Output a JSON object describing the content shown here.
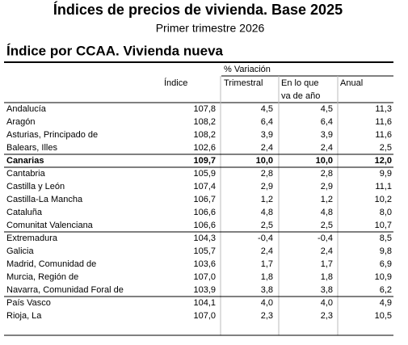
{
  "header": {
    "title": "Índices de precios de vivienda. Base 2025",
    "subtitle": "Primer trimestre 2026"
  },
  "table": {
    "title": "Índice por CCAA. Vivienda nueva",
    "group_header": "% Variación",
    "columns": [
      "Índice",
      "Trimestral",
      "En lo que",
      "va de año",
      "Anual"
    ],
    "rows": [
      [
        "Andalucía",
        "107,8",
        "4,5",
        "4,5",
        "11,3"
      ],
      [
        "Aragón",
        "108,2",
        "6,4",
        "6,4",
        "11,6"
      ],
      [
        "Asturias, Principado de",
        "108,2",
        "3,9",
        "3,9",
        "11,6"
      ],
      [
        "Balears, Illes",
        "102,6",
        "2,4",
        "2,4",
        "2,5"
      ],
      [
        "Canarias",
        "109,7",
        "10,0",
        "10,0",
        "12,0"
      ],
      [
        "Cantabria",
        "105,9",
        "2,8",
        "2,8",
        "9,9"
      ],
      [
        "Castilla y León",
        "107,4",
        "2,9",
        "2,9",
        "11,1"
      ],
      [
        "Castilla-La Mancha",
        "106,7",
        "1,2",
        "1,2",
        "10,2"
      ],
      [
        "Cataluña",
        "106,6",
        "4,8",
        "4,8",
        "8,0"
      ],
      [
        "Comunitat Valenciana",
        "106,6",
        "2,5",
        "2,5",
        "10,7"
      ],
      [
        "Extremadura",
        "104,3",
        "-0,4",
        "-0,4",
        "8,5"
      ],
      [
        "Galicia",
        "105,7",
        "2,4",
        "2,4",
        "9,8"
      ],
      [
        "Madrid, Comunidad de",
        "103,6",
        "1,7",
        "1,7",
        "6,9"
      ],
      [
        "Murcia, Región de",
        "107,0",
        "1,8",
        "1,8",
        "10,9"
      ],
      [
        "Navarra, Comunidad Foral de",
        "103,9",
        "3,8",
        "3,8",
        "6,2"
      ],
      [
        "País Vasco",
        "104,1",
        "4,0",
        "4,0",
        "4,9"
      ],
      [
        "Rioja, La",
        "107,0",
        "2,3",
        "2,3",
        "10,5"
      ]
    ]
  }
}
